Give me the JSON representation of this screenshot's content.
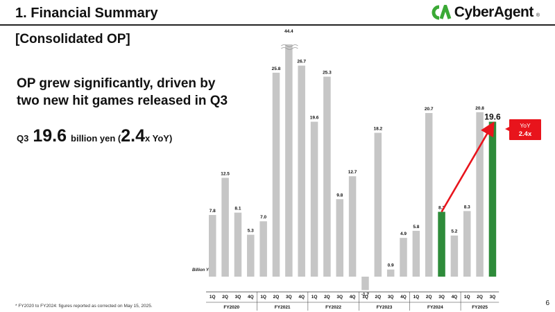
{
  "header": {
    "section_title": "1.  Financial Summary",
    "logo_text": "CyberAgent",
    "logo_reg": "®",
    "sub_title": "[Consolidated OP]"
  },
  "headline": {
    "line1": "OP grew significantly, driven by",
    "line2": "two new hit games released in Q3"
  },
  "kpi": {
    "prefix": "Q3",
    "value": "19.6",
    "unit_text": "billion yen (",
    "multiple": "2.4",
    "suffix": "x YoY)"
  },
  "footnote": "* FY2020 to FY2024: figures reported as corrected on May 15, 2025.",
  "page_number": "6",
  "colors": {
    "bar_default": "#c6c6c6",
    "bar_highlight": "#2e8b3a",
    "callout": "#e8141c"
  },
  "chart_data": {
    "type": "bar",
    "unit_label": "Billion Yen",
    "categories": [
      "1Q",
      "2Q",
      "3Q",
      "4Q",
      "1Q",
      "2Q",
      "3Q",
      "4Q",
      "1Q",
      "2Q",
      "3Q",
      "4Q",
      "1Q",
      "2Q",
      "3Q",
      "4Q",
      "1Q",
      "2Q",
      "3Q",
      "4Q",
      "1Q",
      "2Q",
      "3Q"
    ],
    "groups": [
      {
        "label": "FY2020",
        "count": 4
      },
      {
        "label": "FY2021",
        "count": 4
      },
      {
        "label": "FY2022",
        "count": 4
      },
      {
        "label": "FY2023",
        "count": 4
      },
      {
        "label": "FY2024",
        "count": 4
      },
      {
        "label": "FY2025",
        "count": 3
      }
    ],
    "values": [
      7.8,
      12.5,
      8.1,
      5.3,
      7.0,
      25.8,
      44.4,
      26.7,
      19.6,
      25.3,
      9.8,
      12.7,
      -1.7,
      18.2,
      0.9,
      4.9,
      5.8,
      20.7,
      8.2,
      5.2,
      8.3,
      20.8,
      19.6
    ],
    "labels": [
      "7.8",
      "12.5",
      "8.1",
      "5.3",
      "7.0",
      "25.8",
      "44.4",
      "26.7",
      "19.6",
      "25.3",
      "9.8",
      "12.7",
      "-1.7",
      "18.2",
      "0.9",
      "4.9",
      "5.8",
      "20.7",
      "8.2",
      "5.2",
      "8.3",
      "20.8",
      "19.6"
    ],
    "highlight_indices": [
      18,
      22
    ],
    "broken_bar_index": 6,
    "callout": {
      "line1": "YoY",
      "line2": "2.4x",
      "from_index": 18,
      "to_index": 22
    }
  }
}
